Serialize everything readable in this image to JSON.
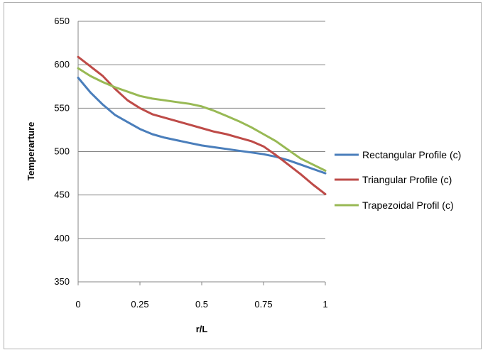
{
  "chart_data": {
    "type": "line",
    "title": "",
    "xlabel": "r/L",
    "ylabel": "Temperarture",
    "xlim": [
      0,
      1
    ],
    "ylim": [
      350,
      650
    ],
    "x_ticks": [
      0,
      0.25,
      0.5,
      0.75,
      1
    ],
    "x_tick_labels": [
      "0",
      "0.25",
      "0.5",
      "0.75",
      "1"
    ],
    "y_ticks": [
      350,
      400,
      450,
      500,
      550,
      600,
      650
    ],
    "y_tick_labels": [
      "350",
      "400",
      "450",
      "500",
      "550",
      "600",
      "650"
    ],
    "grid": "horizontal",
    "legend_position": "right",
    "series": [
      {
        "name": "Rectangular Profile (c)",
        "color": "#4a7ebb",
        "x": [
          0,
          0.05,
          0.1,
          0.15,
          0.2,
          0.25,
          0.3,
          0.35,
          0.4,
          0.45,
          0.5,
          0.55,
          0.6,
          0.65,
          0.7,
          0.75,
          0.8,
          0.85,
          0.9,
          0.95,
          1
        ],
        "y": [
          585,
          568,
          554,
          542,
          534,
          526,
          520,
          516,
          513,
          510,
          507,
          505,
          503,
          501,
          499,
          497,
          494,
          490,
          485,
          480,
          475
        ]
      },
      {
        "name": "Triangular Profile (c)",
        "color": "#be4b48",
        "x": [
          0,
          0.05,
          0.1,
          0.15,
          0.2,
          0.25,
          0.3,
          0.35,
          0.4,
          0.45,
          0.5,
          0.55,
          0.6,
          0.65,
          0.7,
          0.75,
          0.8,
          0.85,
          0.9,
          0.95,
          1
        ],
        "y": [
          609,
          598,
          587,
          572,
          559,
          550,
          543,
          539,
          535,
          531,
          527,
          523,
          520,
          516,
          512,
          506,
          496,
          485,
          474,
          462,
          451
        ]
      },
      {
        "name": "Trapezoidal Profil (c)",
        "color": "#98b954",
        "x": [
          0,
          0.05,
          0.1,
          0.15,
          0.2,
          0.25,
          0.3,
          0.35,
          0.4,
          0.45,
          0.5,
          0.55,
          0.6,
          0.65,
          0.7,
          0.75,
          0.8,
          0.85,
          0.9,
          0.95,
          1
        ],
        "y": [
          596,
          587,
          580,
          574,
          569,
          564,
          561,
          559,
          557,
          555,
          552,
          547,
          541,
          535,
          528,
          520,
          512,
          502,
          492,
          485,
          478
        ]
      }
    ]
  }
}
